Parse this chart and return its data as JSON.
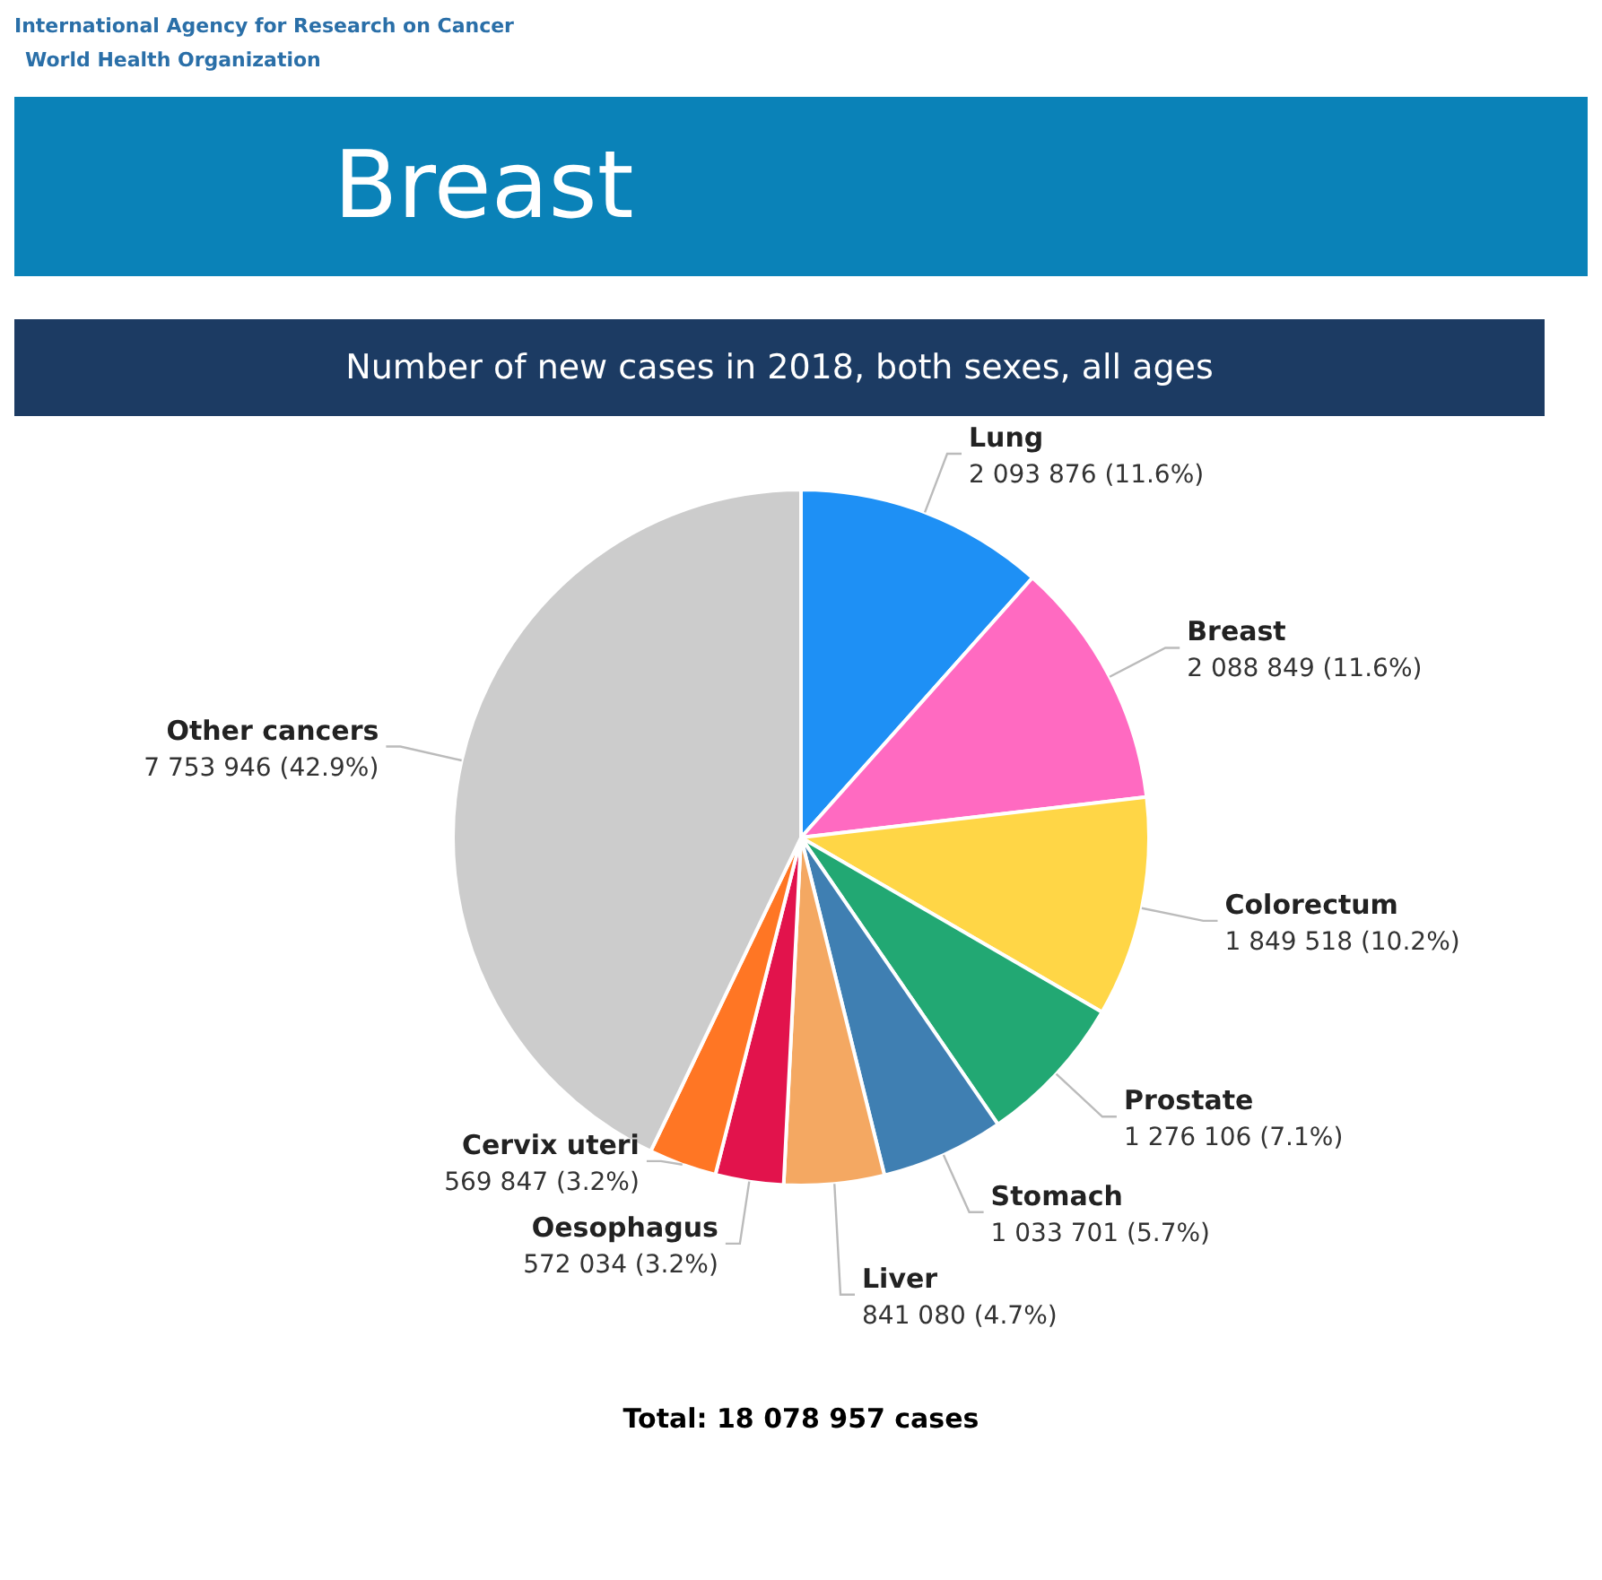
{
  "chart_data": {
    "type": "pie",
    "title": "Breast",
    "subtitle": "Number of new cases in 2018, both sexes, all ages",
    "categories": [
      "Lung",
      "Breast",
      "Colorectum",
      "Prostate",
      "Stomach",
      "Liver",
      "Oesophagus",
      "Cervix uteri",
      "Other cancers"
    ],
    "values": [
      2093876,
      2088849,
      1849518,
      1276106,
      1033701,
      841080,
      572034,
      569847,
      7753946
    ],
    "value_labels": [
      "2 093 876 (11.6%)",
      "2 088 849 (11.6%)",
      "1 849 518 (10.2%)",
      "1 276 106 (7.1%)",
      "1 033 701 (5.7%)",
      "841 080 (4.7%)",
      "572 034 (3.2%)",
      "569 847 (3.2%)",
      "7 753 946 (42.9%)"
    ],
    "colors": [
      "#1e90f5",
      "#ff6ac1",
      "#ffd646",
      "#22a873",
      "#3f7fb2",
      "#f4a862",
      "#e2134c",
      "#ff7624",
      "#cccccc"
    ],
    "legend": false,
    "annotations": [
      "International Agency for Research on Cancer",
      "World Health Organization",
      "Total: 18 078 957 cases"
    ]
  }
}
